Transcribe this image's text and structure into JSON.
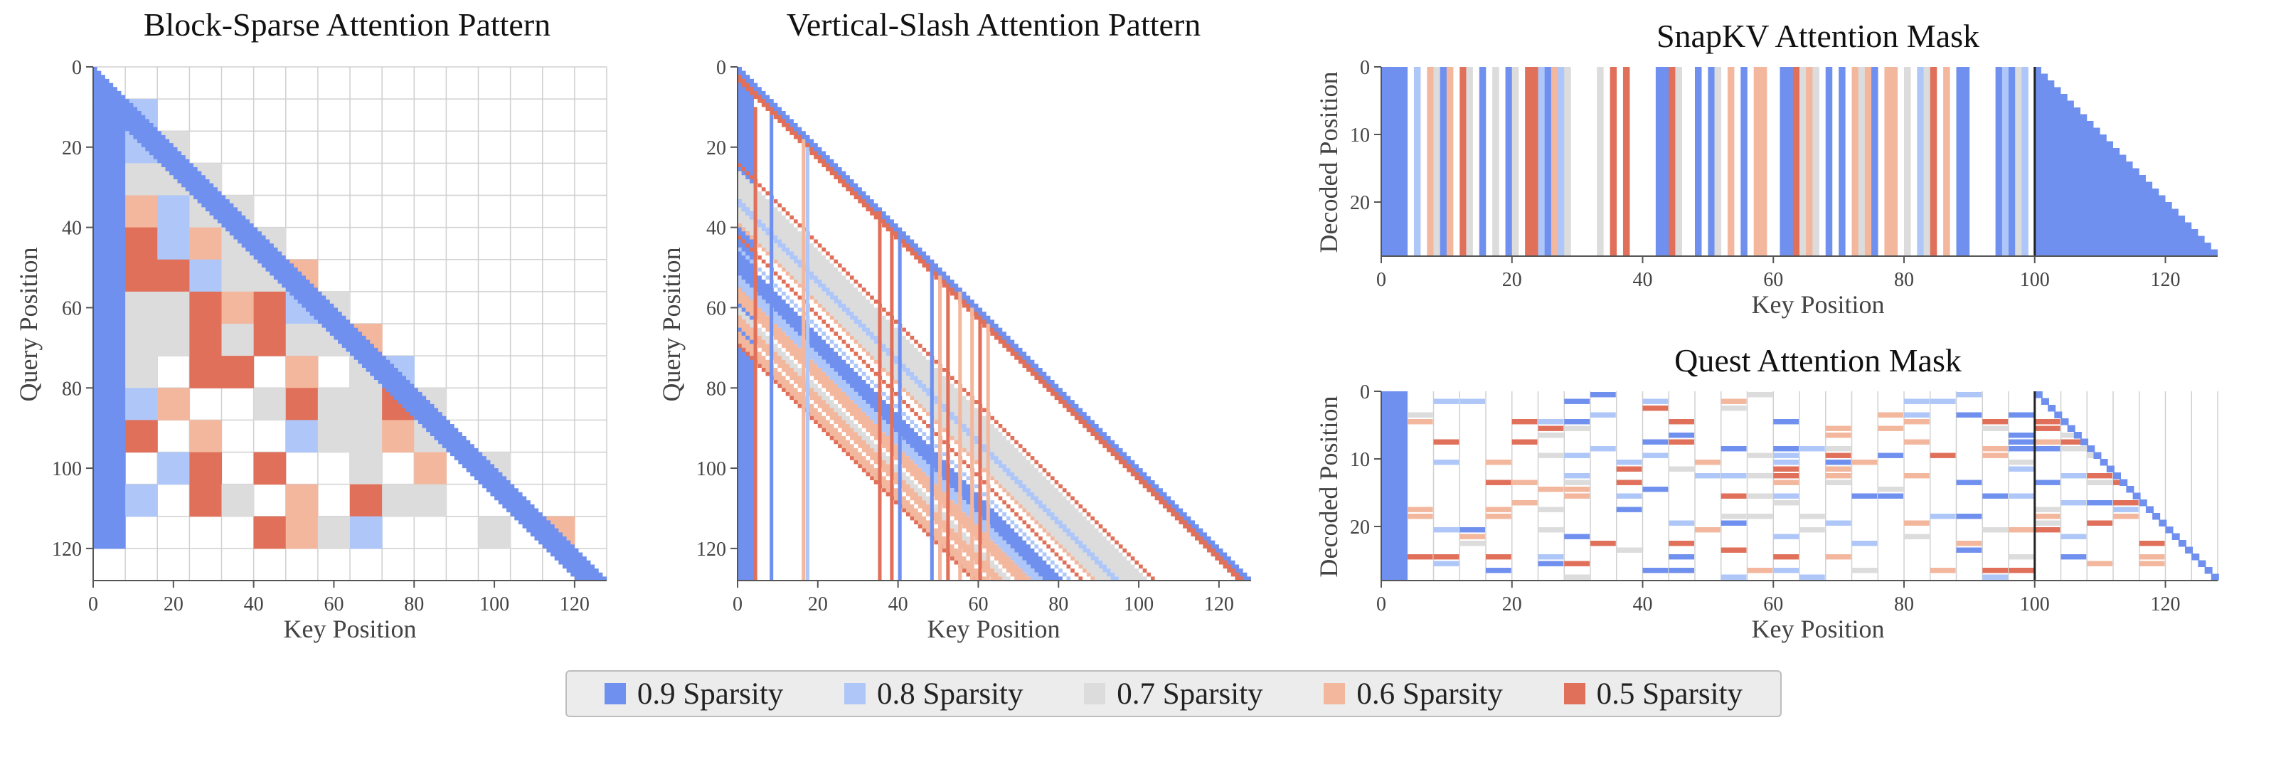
{
  "palette": {
    "c09": "#6f90ee",
    "c08": "#aec7f8",
    "c07": "#dcdcdc",
    "c06": "#f3b79e",
    "c05": "#e0705a",
    "grid": "#d0d0d0",
    "axis": "#555555"
  },
  "legend": {
    "entries": [
      {
        "key": "c09",
        "label": "0.9 Sparsity"
      },
      {
        "key": "c08",
        "label": "0.8 Sparsity"
      },
      {
        "key": "c07",
        "label": "0.7 Sparsity"
      },
      {
        "key": "c06",
        "label": "0.6 Sparsity"
      },
      {
        "key": "c05",
        "label": "0.5 Sparsity"
      }
    ]
  },
  "chart_data": [
    {
      "id": "block_sparse",
      "type": "heatmap",
      "title": "Block-Sparse Attention Pattern",
      "xlabel": "Key Position",
      "ylabel": "Query Position",
      "xlim": [
        0,
        128
      ],
      "ylim": [
        0,
        128
      ],
      "xticks": [
        0,
        20,
        40,
        60,
        80,
        100,
        120
      ],
      "yticks": [
        0,
        20,
        40,
        60,
        80,
        100,
        120
      ],
      "block_size": 8,
      "diagonal_color": "c09",
      "blocks": [
        [
          1,
          0,
          "c09"
        ],
        [
          1,
          1,
          "c08"
        ],
        [
          2,
          0,
          "c09"
        ],
        [
          2,
          1,
          "c08"
        ],
        [
          2,
          2,
          "c07"
        ],
        [
          3,
          0,
          "c09"
        ],
        [
          3,
          1,
          "c07"
        ],
        [
          3,
          2,
          "c07"
        ],
        [
          3,
          3,
          "c07"
        ],
        [
          4,
          0,
          "c09"
        ],
        [
          4,
          1,
          "c06"
        ],
        [
          4,
          2,
          "c08"
        ],
        [
          4,
          3,
          "c07"
        ],
        [
          4,
          4,
          "c07"
        ],
        [
          5,
          0,
          "c09"
        ],
        [
          5,
          1,
          "c05"
        ],
        [
          5,
          2,
          "c08"
        ],
        [
          5,
          3,
          "c06"
        ],
        [
          5,
          4,
          "c07"
        ],
        [
          5,
          5,
          "c07"
        ],
        [
          6,
          0,
          "c09"
        ],
        [
          6,
          1,
          "c05"
        ],
        [
          6,
          2,
          "c05"
        ],
        [
          6,
          3,
          "c08"
        ],
        [
          6,
          4,
          "c07"
        ],
        [
          6,
          5,
          "c07"
        ],
        [
          6,
          6,
          "c06"
        ],
        [
          7,
          0,
          "c09"
        ],
        [
          7,
          1,
          "c07"
        ],
        [
          7,
          2,
          "c07"
        ],
        [
          7,
          3,
          "c05"
        ],
        [
          7,
          4,
          "c06"
        ],
        [
          7,
          5,
          "c05"
        ],
        [
          7,
          6,
          "c08"
        ],
        [
          7,
          7,
          "c07"
        ],
        [
          8,
          0,
          "c09"
        ],
        [
          8,
          1,
          "c07"
        ],
        [
          8,
          2,
          "c07"
        ],
        [
          8,
          3,
          "c05"
        ],
        [
          8,
          4,
          "c07"
        ],
        [
          8,
          5,
          "c05"
        ],
        [
          8,
          6,
          "c07"
        ],
        [
          8,
          7,
          "c07"
        ],
        [
          8,
          8,
          "c06"
        ],
        [
          9,
          0,
          "c09"
        ],
        [
          9,
          1,
          "c07"
        ],
        [
          9,
          3,
          "c05"
        ],
        [
          9,
          4,
          "c05"
        ],
        [
          9,
          6,
          "c06"
        ],
        [
          9,
          8,
          "c07"
        ],
        [
          9,
          9,
          "c08"
        ],
        [
          10,
          0,
          "c09"
        ],
        [
          10,
          1,
          "c08"
        ],
        [
          10,
          2,
          "c06"
        ],
        [
          10,
          5,
          "c07"
        ],
        [
          10,
          6,
          "c05"
        ],
        [
          10,
          7,
          "c07"
        ],
        [
          10,
          8,
          "c07"
        ],
        [
          10,
          9,
          "c05"
        ],
        [
          10,
          10,
          "c07"
        ],
        [
          11,
          0,
          "c09"
        ],
        [
          11,
          1,
          "c05"
        ],
        [
          11,
          3,
          "c06"
        ],
        [
          11,
          6,
          "c08"
        ],
        [
          11,
          7,
          "c07"
        ],
        [
          11,
          8,
          "c07"
        ],
        [
          11,
          9,
          "c06"
        ],
        [
          11,
          10,
          "c07"
        ],
        [
          12,
          0,
          "c09"
        ],
        [
          12,
          2,
          "c08"
        ],
        [
          12,
          3,
          "c05"
        ],
        [
          12,
          5,
          "c05"
        ],
        [
          12,
          8,
          "c07"
        ],
        [
          12,
          10,
          "c06"
        ],
        [
          12,
          12,
          "c07"
        ],
        [
          13,
          0,
          "c09"
        ],
        [
          13,
          1,
          "c08"
        ],
        [
          13,
          3,
          "c05"
        ],
        [
          13,
          4,
          "c07"
        ],
        [
          13,
          6,
          "c06"
        ],
        [
          13,
          8,
          "c05"
        ],
        [
          13,
          9,
          "c07"
        ],
        [
          13,
          10,
          "c07"
        ],
        [
          14,
          0,
          "c09"
        ],
        [
          14,
          5,
          "c05"
        ],
        [
          14,
          6,
          "c06"
        ],
        [
          14,
          7,
          "c07"
        ],
        [
          14,
          8,
          "c08"
        ],
        [
          14,
          12,
          "c07"
        ],
        [
          14,
          14,
          "c06"
        ]
      ]
    },
    {
      "id": "vertical_slash",
      "type": "heatmap",
      "title": "Vertical-Slash Attention Pattern",
      "xlabel": "Key Position",
      "ylabel": "Query Position",
      "xlim": [
        0,
        128
      ],
      "ylim": [
        0,
        128
      ],
      "xticks": [
        0,
        20,
        40,
        60,
        80,
        100,
        120
      ],
      "yticks": [
        0,
        20,
        40,
        60,
        80,
        100,
        120
      ],
      "base_columns": [
        0,
        1,
        2,
        3
      ],
      "slashes": [
        {
          "offset": 0,
          "width": 3,
          "key": "c09"
        },
        {
          "offset": 2,
          "width": 2,
          "key": "c05"
        },
        {
          "offset": 24,
          "width": 1,
          "key": "c05"
        },
        {
          "offset": 26,
          "width": 7,
          "key": "c07"
        },
        {
          "offset": 33,
          "width": 2,
          "key": "c08"
        },
        {
          "offset": 35,
          "width": 4,
          "key": "c07"
        },
        {
          "offset": 39,
          "width": 1,
          "key": "c06"
        },
        {
          "offset": 42,
          "width": 1,
          "key": "c05"
        },
        {
          "offset": 45,
          "width": 1,
          "key": "c08"
        },
        {
          "offset": 47,
          "width": 5,
          "key": "c09"
        },
        {
          "offset": 52,
          "width": 3,
          "key": "c08"
        },
        {
          "offset": 55,
          "width": 4,
          "key": "c06"
        },
        {
          "offset": 60,
          "width": 2,
          "key": "c07"
        },
        {
          "offset": 62,
          "width": 3,
          "key": "c06"
        },
        {
          "offset": 66,
          "width": 3,
          "key": "c06"
        },
        {
          "offset": 69,
          "width": 1,
          "key": "c05"
        }
      ],
      "verticals": [
        {
          "col": 4,
          "start": 10,
          "key": "c05"
        },
        {
          "col": 8,
          "start": 12,
          "key": "c09"
        },
        {
          "col": 16,
          "start": 18,
          "key": "c06"
        },
        {
          "col": 17,
          "start": 20,
          "key": "c08"
        },
        {
          "col": 35,
          "start": 36,
          "key": "c05"
        },
        {
          "col": 38,
          "start": 40,
          "key": "c05"
        },
        {
          "col": 40,
          "start": 42,
          "key": "c09"
        },
        {
          "col": 48,
          "start": 50,
          "key": "c09"
        },
        {
          "col": 50,
          "start": 52,
          "key": "c06"
        },
        {
          "col": 52,
          "start": 54,
          "key": "c05"
        },
        {
          "col": 55,
          "start": 56,
          "key": "c06"
        },
        {
          "col": 58,
          "start": 60,
          "key": "c06"
        },
        {
          "col": 60,
          "start": 62,
          "key": "c05"
        },
        {
          "col": 62,
          "start": 64,
          "key": "c06"
        }
      ]
    },
    {
      "id": "snapkv",
      "type": "heatmap",
      "title": "SnapKV Attention Mask",
      "xlabel": "Key Position",
      "ylabel": "Decoded Position",
      "xlim": [
        0,
        128
      ],
      "ylim": [
        0,
        28
      ],
      "xticks": [
        0,
        20,
        40,
        60,
        80,
        100,
        120
      ],
      "yticks": [
        0,
        10,
        20
      ],
      "prefix": 100,
      "marker_line": 100,
      "columns": [
        [
          0,
          4,
          "c09"
        ],
        [
          5,
          1,
          "c08"
        ],
        [
          7,
          1,
          "c06"
        ],
        [
          8,
          1,
          "c07"
        ],
        [
          9,
          1,
          "c09"
        ],
        [
          10,
          1,
          "c06"
        ],
        [
          12,
          1,
          "c05"
        ],
        [
          13,
          1,
          "c07"
        ],
        [
          15,
          1,
          "c09"
        ],
        [
          17,
          1,
          "c07"
        ],
        [
          19,
          1,
          "c09"
        ],
        [
          20,
          1,
          "c07"
        ],
        [
          22,
          2,
          "c05"
        ],
        [
          24,
          1,
          "c08"
        ],
        [
          25,
          1,
          "c09"
        ],
        [
          26,
          1,
          "c06"
        ],
        [
          27,
          1,
          "c08"
        ],
        [
          28,
          1,
          "c07"
        ],
        [
          33,
          1,
          "c07"
        ],
        [
          35,
          1,
          "c05"
        ],
        [
          37,
          1,
          "c05"
        ],
        [
          42,
          2,
          "c09"
        ],
        [
          44,
          1,
          "c05"
        ],
        [
          45,
          1,
          "c07"
        ],
        [
          48,
          1,
          "c09"
        ],
        [
          50,
          1,
          "c09"
        ],
        [
          51,
          1,
          "c07"
        ],
        [
          53,
          1,
          "c06"
        ],
        [
          55,
          1,
          "c09"
        ],
        [
          57,
          2,
          "c06"
        ],
        [
          61,
          2,
          "c09"
        ],
        [
          63,
          1,
          "c05"
        ],
        [
          64,
          1,
          "c07"
        ],
        [
          65,
          1,
          "c06"
        ],
        [
          66,
          1,
          "c07"
        ],
        [
          68,
          1,
          "c09"
        ],
        [
          70,
          1,
          "c09"
        ],
        [
          72,
          1,
          "c06"
        ],
        [
          73,
          1,
          "c07"
        ],
        [
          74,
          1,
          "c06"
        ],
        [
          75,
          1,
          "c09"
        ],
        [
          77,
          1,
          "c06"
        ],
        [
          78,
          1,
          "c06"
        ],
        [
          80,
          1,
          "c07"
        ],
        [
          82,
          1,
          "c08"
        ],
        [
          83,
          1,
          "c07"
        ],
        [
          84,
          1,
          "c05"
        ],
        [
          86,
          1,
          "c06"
        ],
        [
          88,
          2,
          "c09"
        ],
        [
          94,
          1,
          "c09"
        ],
        [
          95,
          1,
          "c08"
        ],
        [
          96,
          1,
          "c09"
        ],
        [
          97,
          1,
          "c07"
        ],
        [
          98,
          1,
          "c08"
        ]
      ]
    },
    {
      "id": "quest",
      "type": "heatmap",
      "title": "Quest Attention Mask",
      "xlabel": "Key Position",
      "ylabel": "Decoded Position",
      "xlim": [
        0,
        128
      ],
      "ylim": [
        0,
        28
      ],
      "xticks": [
        0,
        20,
        40,
        60,
        80,
        100,
        120
      ],
      "yticks": [
        0,
        10,
        20
      ],
      "prefix": 100,
      "marker_line": 100,
      "sink_columns": 4,
      "block_width": 4,
      "seed": 13
    }
  ]
}
